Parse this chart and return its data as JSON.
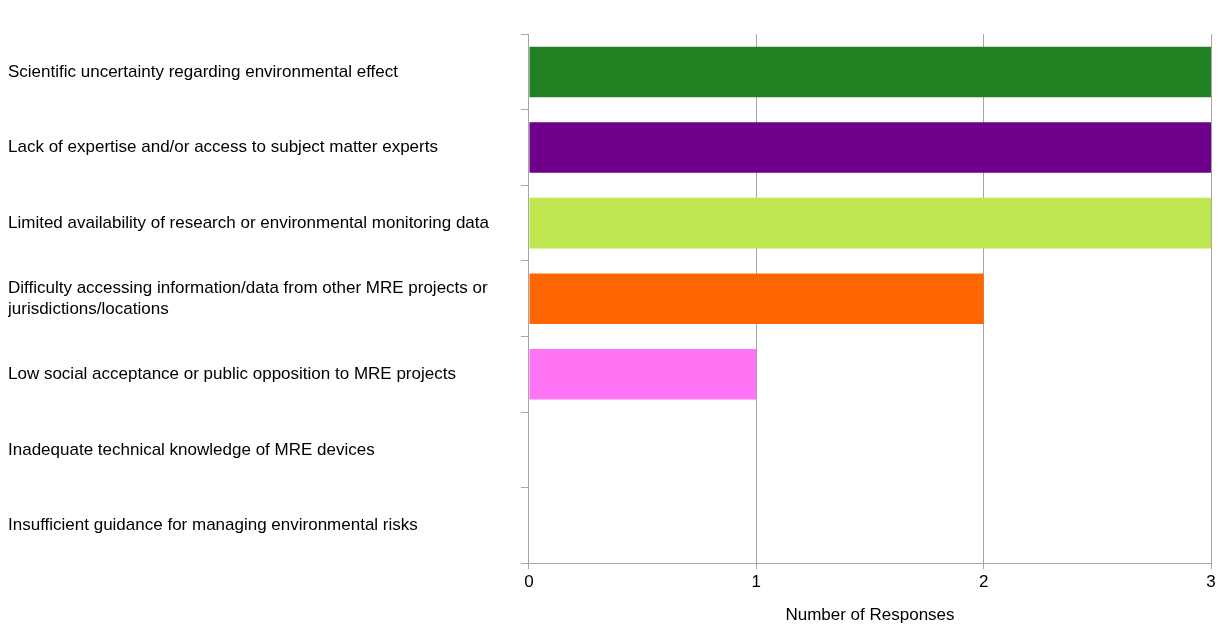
{
  "chart_data": {
    "type": "bar",
    "orientation": "horizontal",
    "xlabel": "Number of Responses",
    "categories": [
      "Scientific uncertainty regarding environmental effect",
      "Lack of expertise and/or access to subject matter experts",
      "Limited availability of research or environmental monitoring data",
      "Difficulty accessing information/data from other MRE projects or jurisdictions/locations",
      "Low social acceptance or public opposition to MRE projects",
      "Inadequate technical knowledge of MRE devices",
      "Insufficient guidance for managing environmental risks"
    ],
    "values": [
      3,
      3,
      3,
      2,
      1,
      0,
      0
    ],
    "colors": [
      "#228122",
      "#6f008b",
      "#bde64f",
      "#ff6600",
      "#ff73f5",
      "#808080",
      "#808080"
    ],
    "xlim": [
      0,
      3
    ],
    "xticks": [
      0,
      1,
      2,
      3
    ],
    "grid": "x",
    "legend": false
  }
}
